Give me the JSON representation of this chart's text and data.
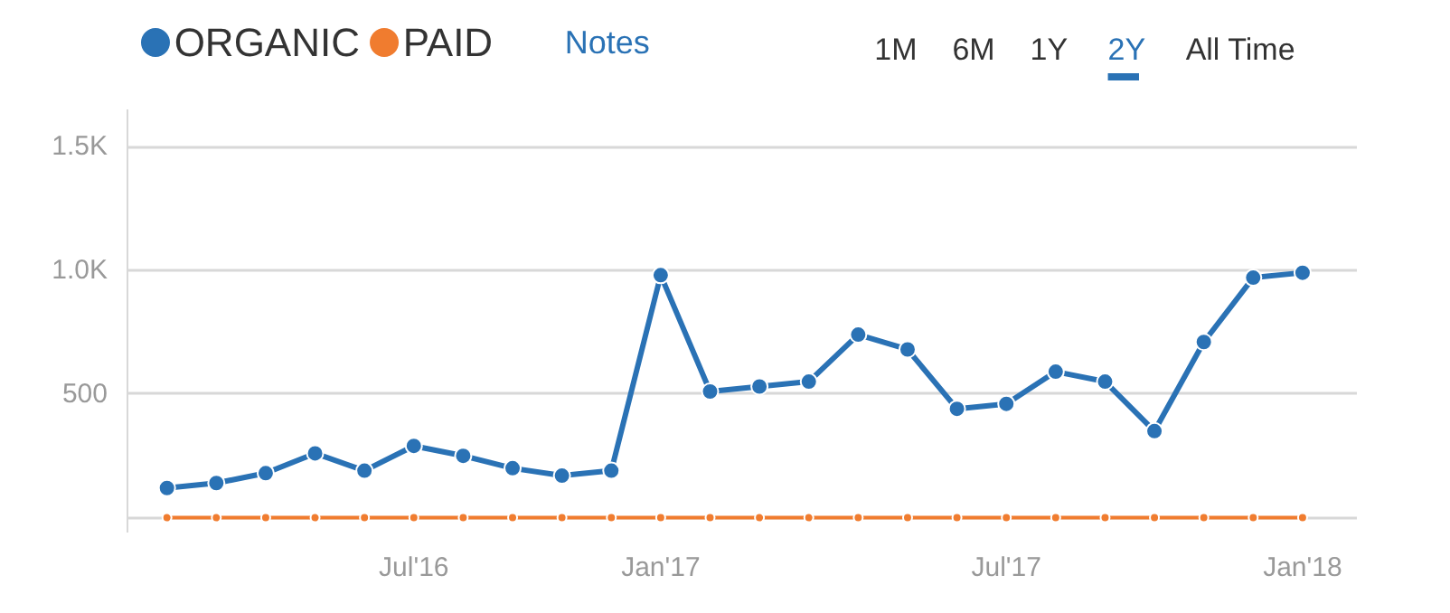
{
  "chart_data": {
    "type": "line",
    "categories": [
      null,
      null,
      null,
      null,
      null,
      "Jul'16",
      null,
      null,
      null,
      null,
      "Jan'17",
      null,
      null,
      null,
      null,
      null,
      null,
      "Jul'17",
      null,
      null,
      null,
      null,
      null,
      "Jan'18"
    ],
    "series": [
      {
        "name": "ORGANIC",
        "color": "#2a72b5",
        "values": [
          120,
          140,
          180,
          260,
          190,
          290,
          250,
          200,
          170,
          190,
          980,
          510,
          530,
          550,
          740,
          680,
          440,
          460,
          590,
          550,
          350,
          710,
          970,
          990
        ]
      },
      {
        "name": "PAID",
        "color": "#f07c2f",
        "values": [
          0,
          0,
          0,
          0,
          0,
          0,
          0,
          0,
          0,
          0,
          0,
          0,
          0,
          0,
          0,
          0,
          0,
          0,
          0,
          0,
          0,
          0,
          0,
          0
        ]
      }
    ],
    "ylim": [
      -60,
      1650
    ],
    "yticks": [
      {
        "value": 0,
        "label": null
      },
      500,
      {
        "value": 1000,
        "label": "1.0K"
      },
      {
        "value": 1500,
        "label": "1.5K"
      }
    ],
    "grid": "y",
    "legend": "top left",
    "marker": "circle",
    "line_style": "solid",
    "annotations": [
      "Notes",
      "1M",
      "6M",
      "1Y",
      "2Y",
      "All Time"
    ]
  }
}
